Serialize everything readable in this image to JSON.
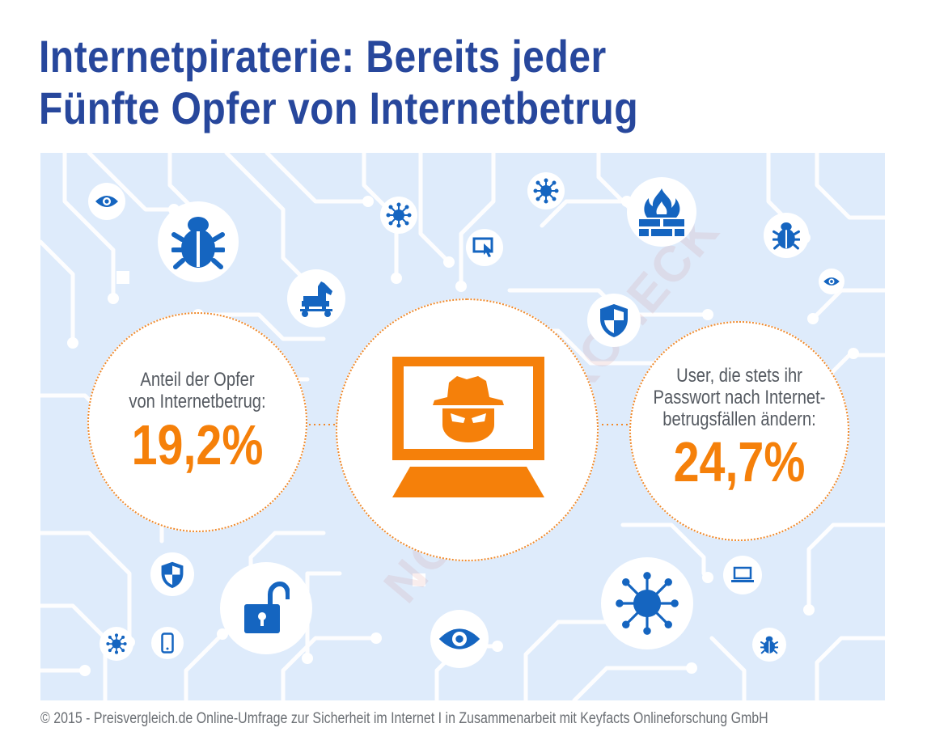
{
  "title": {
    "line1": "Internetpiraterie: Bereits jeder",
    "line2": "Fünfte Opfer von Internetbetrug"
  },
  "stat_left": {
    "label_line1": "Anteil der Opfer",
    "label_line2": "von Internetbetrug:",
    "value": "19,2%"
  },
  "stat_right": {
    "label_line1": "User, die stets ihr",
    "label_line2": "Passwort nach Internet-",
    "label_line3": "betrugsfällen ändern:",
    "value": "24,7%"
  },
  "watermark": "NOTEBOOKCHECK",
  "footer": "© 2015 - Preisvergleich.de Online-Umfrage zur Sicherheit im Internet I in Zusammenarbeit mit Keyfacts Onlineforschung GmbH",
  "colors": {
    "title": "#27479c",
    "icon_blue": "#1565c0",
    "accent_orange": "#f5800a",
    "panel_bg": "#deebfb",
    "circuit": "#ffffff"
  },
  "icons": [
    "eye-icon",
    "bug-icon",
    "virus-icon",
    "trojan-horse-icon",
    "touch-screen-icon",
    "firewall-icon",
    "shield-icon",
    "hacker-laptop-icon",
    "padlock-open-icon",
    "smartphone-icon",
    "laptop-icon"
  ]
}
